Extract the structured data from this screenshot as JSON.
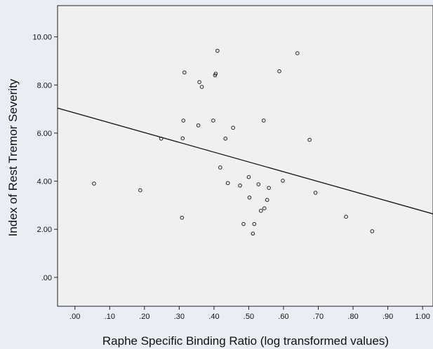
{
  "chart_data": {
    "type": "scatter",
    "title": "",
    "xlabel": "Raphe Specific Binding Ratio (log transformed values)",
    "ylabel": "Index of Rest Tremor Severity",
    "xlim": [
      -0.05,
      1.03
    ],
    "ylim": [
      -1.2,
      11.3
    ],
    "x_ticks": [
      0.0,
      0.1,
      0.2,
      0.3,
      0.4,
      0.5,
      0.6,
      0.7,
      0.8,
      0.9,
      1.0
    ],
    "x_tick_labels": [
      ".00",
      ".10",
      ".20",
      ".30",
      ".40",
      ".50",
      ".60",
      ".70",
      ".80",
      ".90",
      "1.00"
    ],
    "y_ticks": [
      0.0,
      2.0,
      4.0,
      6.0,
      8.0,
      10.0
    ],
    "y_tick_labels": [
      ".00",
      "2.00",
      "4.00",
      "6.00",
      "8.00",
      "10.00"
    ],
    "grid": false,
    "legend": "none",
    "colors": {
      "background": "#e9eef5",
      "plot_area": "#f0f0f0",
      "points": "#222222",
      "line": "#111111"
    },
    "points": [
      {
        "x": 0.055,
        "y": 3.9
      },
      {
        "x": 0.188,
        "y": 3.62
      },
      {
        "x": 0.248,
        "y": 5.77
      },
      {
        "x": 0.308,
        "y": 2.48
      },
      {
        "x": 0.31,
        "y": 5.78
      },
      {
        "x": 0.312,
        "y": 6.52
      },
      {
        "x": 0.315,
        "y": 8.52
      },
      {
        "x": 0.355,
        "y": 6.32
      },
      {
        "x": 0.358,
        "y": 8.12
      },
      {
        "x": 0.365,
        "y": 7.92
      },
      {
        "x": 0.398,
        "y": 6.52
      },
      {
        "x": 0.403,
        "y": 8.4
      },
      {
        "x": 0.405,
        "y": 8.47
      },
      {
        "x": 0.41,
        "y": 9.42
      },
      {
        "x": 0.418,
        "y": 4.57
      },
      {
        "x": 0.433,
        "y": 5.77
      },
      {
        "x": 0.44,
        "y": 3.92
      },
      {
        "x": 0.455,
        "y": 6.22
      },
      {
        "x": 0.475,
        "y": 3.82
      },
      {
        "x": 0.485,
        "y": 2.22
      },
      {
        "x": 0.5,
        "y": 4.17
      },
      {
        "x": 0.502,
        "y": 3.32
      },
      {
        "x": 0.512,
        "y": 1.82
      },
      {
        "x": 0.516,
        "y": 2.22
      },
      {
        "x": 0.528,
        "y": 3.87
      },
      {
        "x": 0.535,
        "y": 2.77
      },
      {
        "x": 0.543,
        "y": 6.52
      },
      {
        "x": 0.545,
        "y": 2.87
      },
      {
        "x": 0.553,
        "y": 3.22
      },
      {
        "x": 0.558,
        "y": 3.72
      },
      {
        "x": 0.588,
        "y": 8.57
      },
      {
        "x": 0.598,
        "y": 4.02
      },
      {
        "x": 0.64,
        "y": 9.32
      },
      {
        "x": 0.675,
        "y": 5.72
      },
      {
        "x": 0.692,
        "y": 3.52
      },
      {
        "x": 0.78,
        "y": 2.52
      },
      {
        "x": 0.855,
        "y": 1.92
      }
    ],
    "fit_line": {
      "x": [
        -0.05,
        1.03
      ],
      "y": [
        7.04,
        2.64
      ]
    }
  }
}
